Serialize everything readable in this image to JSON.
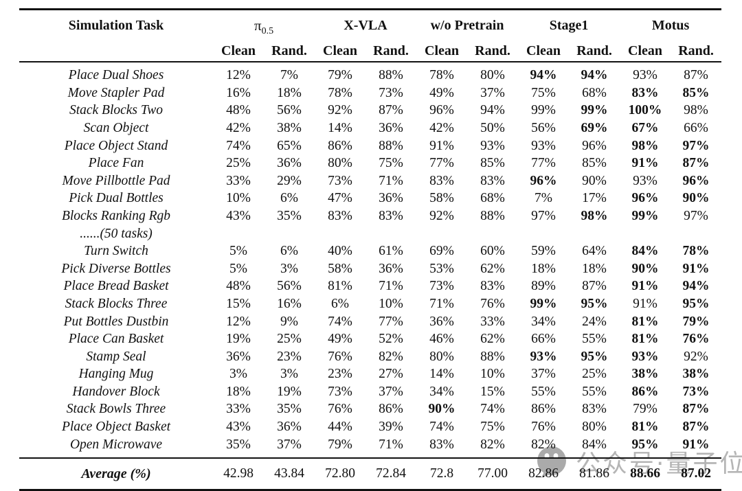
{
  "table": {
    "task_header": "Simulation Task",
    "groups": [
      {
        "name": "π",
        "subscript": "0.5",
        "sub": [
          "Clean",
          "Rand."
        ]
      },
      {
        "name": "X-VLA",
        "sub": [
          "Clean",
          "Rand."
        ]
      },
      {
        "name": "w/o Pretrain",
        "sub": [
          "Clean",
          "Rand."
        ]
      },
      {
        "name": "Stage1",
        "sub": [
          "Clean",
          "Rand."
        ]
      },
      {
        "name": "Motus",
        "sub": [
          "Clean",
          "Rand."
        ]
      }
    ],
    "rows": [
      {
        "task": "Place Dual Shoes",
        "values": [
          "12%",
          "7%",
          "79%",
          "88%",
          "78%",
          "80%",
          "94%",
          "94%",
          "93%",
          "87%"
        ],
        "bold": [
          0,
          0,
          0,
          0,
          0,
          0,
          1,
          1,
          0,
          0
        ]
      },
      {
        "task": "Move Stapler Pad",
        "values": [
          "16%",
          "18%",
          "78%",
          "73%",
          "49%",
          "37%",
          "75%",
          "68%",
          "83%",
          "85%"
        ],
        "bold": [
          0,
          0,
          0,
          0,
          0,
          0,
          0,
          0,
          1,
          1
        ]
      },
      {
        "task": "Stack Blocks Two",
        "values": [
          "48%",
          "56%",
          "92%",
          "87%",
          "96%",
          "94%",
          "99%",
          "99%",
          "100%",
          "98%"
        ],
        "bold": [
          0,
          0,
          0,
          0,
          0,
          0,
          0,
          1,
          1,
          0
        ]
      },
      {
        "task": "Scan Object",
        "values": [
          "42%",
          "38%",
          "14%",
          "36%",
          "42%",
          "50%",
          "56%",
          "69%",
          "67%",
          "66%"
        ],
        "bold": [
          0,
          0,
          0,
          0,
          0,
          0,
          0,
          1,
          1,
          0
        ]
      },
      {
        "task": "Place Object Stand",
        "values": [
          "74%",
          "65%",
          "86%",
          "88%",
          "91%",
          "93%",
          "93%",
          "96%",
          "98%",
          "97%"
        ],
        "bold": [
          0,
          0,
          0,
          0,
          0,
          0,
          0,
          0,
          1,
          1
        ]
      },
      {
        "task": "Place Fan",
        "values": [
          "25%",
          "36%",
          "80%",
          "75%",
          "77%",
          "85%",
          "77%",
          "85%",
          "91%",
          "87%"
        ],
        "bold": [
          0,
          0,
          0,
          0,
          0,
          0,
          0,
          0,
          1,
          1
        ]
      },
      {
        "task": "Move Pillbottle Pad",
        "values": [
          "33%",
          "29%",
          "73%",
          "71%",
          "83%",
          "83%",
          "96%",
          "90%",
          "93%",
          "96%"
        ],
        "bold": [
          0,
          0,
          0,
          0,
          0,
          0,
          1,
          0,
          0,
          1
        ]
      },
      {
        "task": "Pick Dual Bottles",
        "values": [
          "10%",
          "6%",
          "47%",
          "36%",
          "58%",
          "68%",
          "7%",
          "17%",
          "96%",
          "90%"
        ],
        "bold": [
          0,
          0,
          0,
          0,
          0,
          0,
          0,
          0,
          1,
          1
        ]
      },
      {
        "task": "Blocks Ranking Rgb",
        "note": "......(50 tasks)",
        "values": [
          "43%",
          "35%",
          "83%",
          "83%",
          "92%",
          "88%",
          "97%",
          "98%",
          "99%",
          "97%"
        ],
        "bold": [
          0,
          0,
          0,
          0,
          0,
          0,
          0,
          1,
          1,
          0
        ]
      },
      {
        "task": "Turn Switch",
        "values": [
          "5%",
          "6%",
          "40%",
          "61%",
          "69%",
          "60%",
          "59%",
          "64%",
          "84%",
          "78%"
        ],
        "bold": [
          0,
          0,
          0,
          0,
          0,
          0,
          0,
          0,
          1,
          1
        ]
      },
      {
        "task": "Pick Diverse Bottles",
        "values": [
          "5%",
          "3%",
          "58%",
          "36%",
          "53%",
          "62%",
          "18%",
          "18%",
          "90%",
          "91%"
        ],
        "bold": [
          0,
          0,
          0,
          0,
          0,
          0,
          0,
          0,
          1,
          1
        ]
      },
      {
        "task": "Place Bread Basket",
        "values": [
          "48%",
          "56%",
          "81%",
          "71%",
          "73%",
          "83%",
          "89%",
          "87%",
          "91%",
          "94%"
        ],
        "bold": [
          0,
          0,
          0,
          0,
          0,
          0,
          0,
          0,
          1,
          1
        ]
      },
      {
        "task": "Stack Blocks Three",
        "values": [
          "15%",
          "16%",
          "6%",
          "10%",
          "71%",
          "76%",
          "99%",
          "95%",
          "91%",
          "95%"
        ],
        "bold": [
          0,
          0,
          0,
          0,
          0,
          0,
          1,
          1,
          0,
          1
        ]
      },
      {
        "task": "Put Bottles Dustbin",
        "values": [
          "12%",
          "9%",
          "74%",
          "77%",
          "36%",
          "33%",
          "34%",
          "24%",
          "81%",
          "79%"
        ],
        "bold": [
          0,
          0,
          0,
          0,
          0,
          0,
          0,
          0,
          1,
          1
        ]
      },
      {
        "task": "Place Can Basket",
        "values": [
          "19%",
          "25%",
          "49%",
          "52%",
          "46%",
          "62%",
          "66%",
          "55%",
          "81%",
          "76%"
        ],
        "bold": [
          0,
          0,
          0,
          0,
          0,
          0,
          0,
          0,
          1,
          1
        ]
      },
      {
        "task": "Stamp Seal",
        "values": [
          "36%",
          "23%",
          "76%",
          "82%",
          "80%",
          "88%",
          "93%",
          "95%",
          "93%",
          "92%"
        ],
        "bold": [
          0,
          0,
          0,
          0,
          0,
          0,
          1,
          1,
          1,
          0
        ]
      },
      {
        "task": "Hanging Mug",
        "values": [
          "3%",
          "3%",
          "23%",
          "27%",
          "14%",
          "10%",
          "37%",
          "25%",
          "38%",
          "38%"
        ],
        "bold": [
          0,
          0,
          0,
          0,
          0,
          0,
          0,
          0,
          1,
          1
        ]
      },
      {
        "task": "Handover Block",
        "values": [
          "18%",
          "19%",
          "73%",
          "37%",
          "34%",
          "15%",
          "55%",
          "55%",
          "86%",
          "73%"
        ],
        "bold": [
          0,
          0,
          0,
          0,
          0,
          0,
          0,
          0,
          1,
          1
        ]
      },
      {
        "task": "Stack Bowls Three",
        "values": [
          "33%",
          "35%",
          "76%",
          "86%",
          "90%",
          "74%",
          "86%",
          "83%",
          "79%",
          "87%"
        ],
        "bold": [
          0,
          0,
          0,
          0,
          1,
          0,
          0,
          0,
          0,
          1
        ]
      },
      {
        "task": "Place Object Basket",
        "values": [
          "43%",
          "36%",
          "44%",
          "39%",
          "74%",
          "75%",
          "76%",
          "80%",
          "81%",
          "87%"
        ],
        "bold": [
          0,
          0,
          0,
          0,
          0,
          0,
          0,
          0,
          1,
          1
        ]
      },
      {
        "task": "Open Microwave",
        "values": [
          "35%",
          "37%",
          "79%",
          "71%",
          "83%",
          "82%",
          "82%",
          "84%",
          "95%",
          "91%"
        ],
        "bold": [
          0,
          0,
          0,
          0,
          0,
          0,
          0,
          0,
          1,
          1
        ]
      }
    ],
    "average": {
      "label": "Average (%)",
      "values": [
        "42.98",
        "43.84",
        "72.80",
        "72.84",
        "72.8",
        "77.00",
        "82.86",
        "81.86",
        "88.66",
        "87.02"
      ],
      "bold": [
        0,
        0,
        0,
        0,
        0,
        0,
        0,
        0,
        1,
        1
      ]
    }
  },
  "watermark": {
    "text": "公众号·量子位",
    "icon": "wechat-logo-icon"
  },
  "colors": {
    "text": "#111111",
    "rule": "#111111",
    "watermark": "#b5b5b5",
    "background": "#ffffff"
  }
}
